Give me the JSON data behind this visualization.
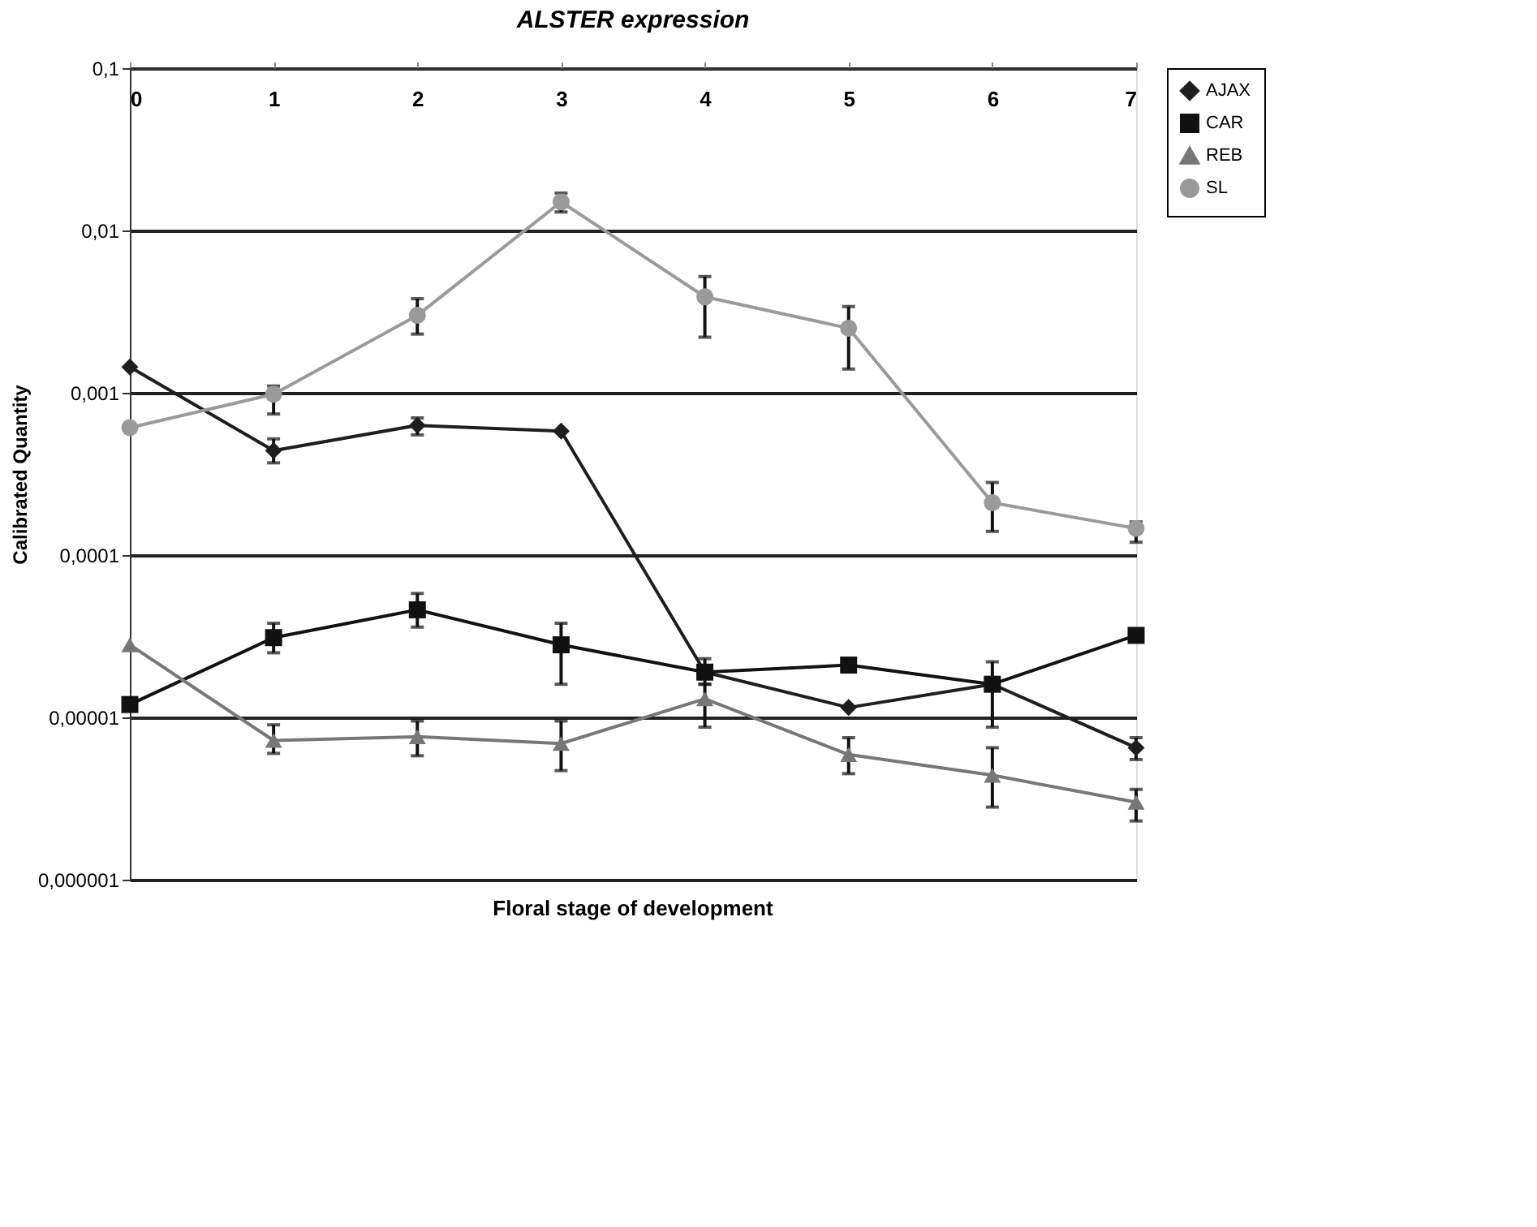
{
  "chart_data": {
    "type": "line",
    "title": "ALSTER expression",
    "xlabel": "Floral stage  of development",
    "ylabel": "Calibrated Quantity",
    "categories": [
      "0",
      "1",
      "2",
      "3",
      "4",
      "5",
      "6",
      "7"
    ],
    "log": "y",
    "ylim": [
      1e-06,
      0.1
    ],
    "yticks": [
      {
        "value": 0.1,
        "label": "0,1"
      },
      {
        "value": 0.01,
        "label": "0,01"
      },
      {
        "value": 0.001,
        "label": "0,001"
      },
      {
        "value": 0.0001,
        "label": "0,0001"
      },
      {
        "value": 1e-05,
        "label": "0,00001"
      },
      {
        "value": 1e-06,
        "label": "0,000001"
      }
    ],
    "grid": "y",
    "legend": "right",
    "line_style": "solid",
    "series": [
      {
        "name": "AJAX",
        "color": "#1e1e1e",
        "marker": "diamond",
        "values": [
          0.00144,
          0.00044,
          0.00063,
          0.00058,
          1.9e-05,
          1.15e-05,
          1.6e-05,
          6.5e-06
        ],
        "errors": [
          null,
          [
            0.00037,
            0.00052
          ],
          [
            0.00055,
            0.0007
          ],
          null,
          null,
          null,
          null,
          [
            5.5e-06,
            7.5e-06
          ]
        ]
      },
      {
        "name": "CAR",
        "color": "#111111",
        "marker": "square",
        "values": [
          1.2e-05,
          3.1e-05,
          4.6e-05,
          2.8e-05,
          1.9e-05,
          2.1e-05,
          1.6e-05,
          3.2e-05
        ],
        "errors": [
          null,
          [
            2.5e-05,
            3.8e-05
          ],
          [
            3.6e-05,
            5.8e-05
          ],
          [
            1.6e-05,
            3.8e-05
          ],
          [
            1.6e-05,
            2.3e-05
          ],
          null,
          [
            8.7e-06,
            2.2e-05
          ],
          null
        ]
      },
      {
        "name": "REB",
        "color": "#777777",
        "marker": "triangle",
        "values": [
          2.8e-05,
          7.2e-06,
          7.6e-06,
          6.9e-06,
          1.3e-05,
          5.9e-06,
          4.4e-06,
          3e-06
        ],
        "errors": [
          null,
          [
            6e-06,
            9e-06
          ],
          [
            5.8e-06,
            9.5e-06
          ],
          [
            4.7e-06,
            9.5e-06
          ],
          [
            8.7e-06,
            1.6e-05
          ],
          [
            4.5e-06,
            7.5e-06
          ],
          [
            2.8e-06,
            6.5e-06
          ],
          [
            2.3e-06,
            3.6e-06
          ]
        ]
      },
      {
        "name": "SL",
        "color": "#9a9a9a",
        "marker": "circle",
        "values": [
          0.00061,
          0.00098,
          0.003,
          0.015,
          0.0039,
          0.0025,
          0.00021,
          0.000146
        ],
        "errors": [
          null,
          [
            0.00074,
            0.0011
          ],
          [
            0.0023,
            0.0038
          ],
          [
            0.013,
            0.017
          ],
          [
            0.0022,
            0.0052
          ],
          [
            0.0014,
            0.0034
          ],
          [
            0.00014,
            0.00028
          ],
          [
            0.00012,
            0.00016
          ]
        ]
      }
    ]
  }
}
